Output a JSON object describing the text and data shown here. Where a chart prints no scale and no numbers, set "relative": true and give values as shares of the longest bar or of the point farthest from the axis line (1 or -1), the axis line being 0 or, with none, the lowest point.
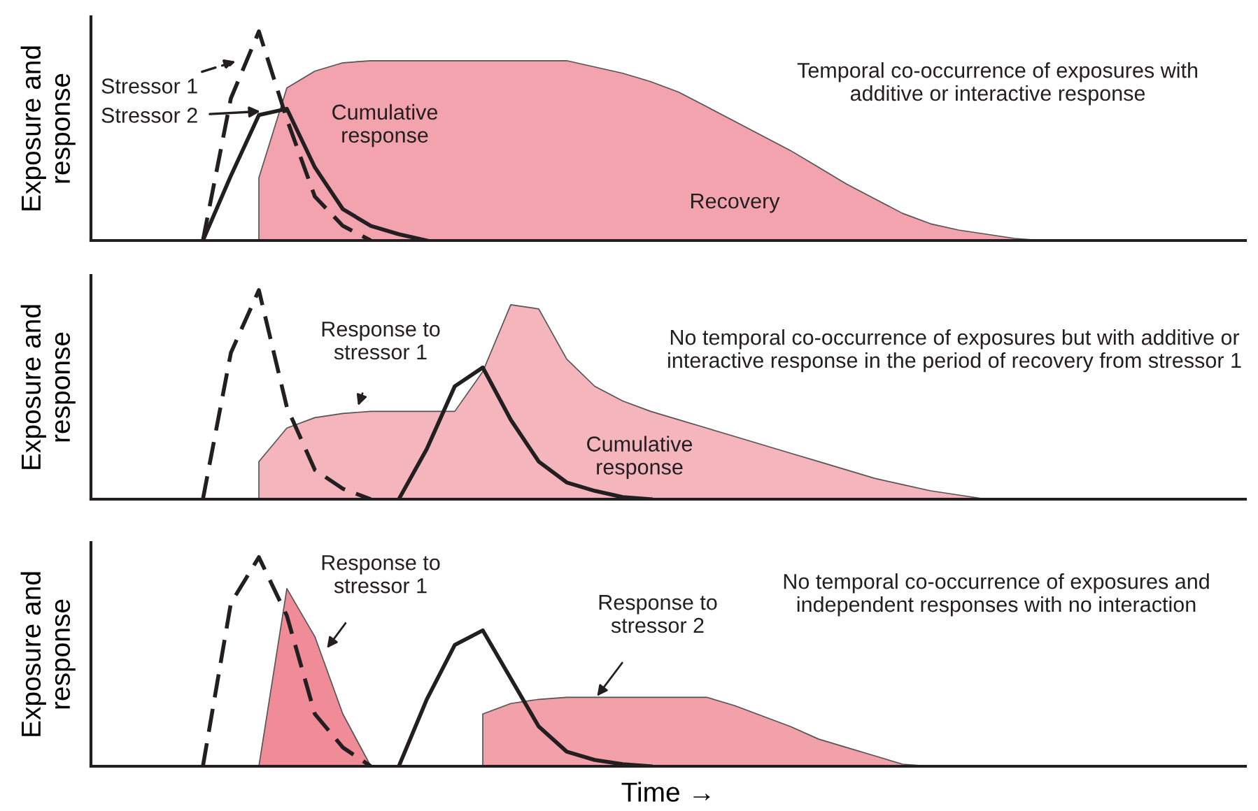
{
  "chart_data": [
    {
      "type": "line",
      "relative": true,
      "ylabel": "Exposure and\nresponse",
      "legend": "top left",
      "categories": [
        null,
        null,
        null,
        null,
        null,
        null,
        null,
        null,
        null,
        null,
        null,
        null,
        null,
        null,
        null,
        null,
        null,
        null,
        null,
        null,
        null,
        null,
        null,
        null,
        null,
        null,
        null,
        null,
        null,
        null,
        null,
        null,
        null,
        null,
        null,
        null,
        null,
        null,
        null,
        null,
        null,
        null
      ],
      "series": [
        {
          "type": "area",
          "color": "#f3a3ad",
          "values": [
            null,
            null,
            null,
            null,
            null,
            null,
            0.3,
            0.73,
            0.81,
            0.85,
            0.86,
            0.86,
            0.86,
            0.86,
            0.86,
            0.86,
            0.86,
            0.86,
            0.83,
            0.8,
            0.76,
            0.71,
            0.64,
            0.57,
            0.5,
            0.43,
            0.35,
            0.27,
            0.2,
            0.13,
            0.08,
            0.05,
            0.03,
            0.01,
            0,
            null,
            null,
            null,
            null,
            null,
            null,
            null
          ]
        },
        {
          "name": "Stressor 1",
          "color": "#231f20",
          "line_style": "dashed",
          "values": [
            null,
            null,
            null,
            null,
            0,
            0.68,
            1,
            0.58,
            0.21,
            0.07,
            0,
            null,
            null,
            null,
            null,
            null,
            null,
            null,
            null,
            null,
            null,
            null,
            null,
            null,
            null,
            null,
            null,
            null,
            null,
            null,
            null,
            null,
            null,
            null,
            null,
            null,
            null,
            null,
            null,
            null,
            null,
            null
          ]
        },
        {
          "name": "Stressor 2",
          "color": "#231f20",
          "line_style": "solid",
          "values": [
            null,
            null,
            null,
            null,
            0,
            0.31,
            0.6,
            0.63,
            0.35,
            0.15,
            0.07,
            0.03,
            0,
            null,
            null,
            null,
            null,
            null,
            null,
            null,
            null,
            null,
            null,
            null,
            null,
            null,
            null,
            null,
            null,
            null,
            null,
            null,
            null,
            null,
            null,
            null,
            null,
            null,
            null,
            null,
            null,
            null
          ]
        }
      ],
      "annotations": [
        "Cumulative\nresponse",
        "Recovery",
        "Temporal co-occurrence of exposures with\nadditive or interactive response"
      ]
    },
    {
      "type": "line",
      "relative": true,
      "ylabel": "Exposure and\nresponse",
      "legend": false,
      "categories": [
        null,
        null,
        null,
        null,
        null,
        null,
        null,
        null,
        null,
        null,
        null,
        null,
        null,
        null,
        null,
        null,
        null,
        null,
        null,
        null,
        null,
        null,
        null,
        null,
        null,
        null,
        null,
        null,
        null,
        null,
        null,
        null,
        null,
        null,
        null,
        null,
        null,
        null,
        null,
        null,
        null,
        null
      ],
      "series": [
        {
          "type": "area",
          "color": "#f5b5bd",
          "values": [
            null,
            null,
            null,
            null,
            null,
            null,
            0.18,
            0.34,
            0.39,
            0.41,
            0.42,
            0.42,
            0.42,
            0.42,
            0.61,
            0.93,
            0.91,
            0.67,
            0.54,
            0.47,
            0.42,
            0.38,
            0.34,
            0.3,
            0.26,
            0.22,
            0.18,
            0.14,
            0.1,
            0.07,
            0.04,
            0.02,
            0,
            null,
            null,
            null,
            null,
            null,
            null,
            null,
            null,
            null
          ]
        },
        {
          "color": "#231f20",
          "line_style": "dashed",
          "values": [
            null,
            null,
            null,
            null,
            0,
            0.7,
            1,
            0.44,
            0.14,
            0.05,
            0,
            null,
            null,
            null,
            null,
            null,
            null,
            null,
            null,
            null,
            null,
            null,
            null,
            null,
            null,
            null,
            null,
            null,
            null,
            null,
            null,
            null,
            null,
            null,
            null,
            null,
            null,
            null,
            null,
            null,
            null,
            null
          ]
        },
        {
          "color": "#231f20",
          "line_style": "solid",
          "values": [
            null,
            null,
            null,
            null,
            null,
            null,
            null,
            null,
            null,
            null,
            null,
            0,
            0.24,
            0.54,
            0.63,
            0.38,
            0.18,
            0.08,
            0.04,
            0.01,
            0,
            null,
            null,
            null,
            null,
            null,
            null,
            null,
            null,
            null,
            null,
            null,
            null,
            null,
            null,
            null,
            null,
            null,
            null,
            null,
            null,
            null
          ]
        }
      ],
      "annotations": [
        "Response to\nstressor 1",
        "Cumulative\nresponse",
        "No temporal co-occurrence of exposures but with additive or\ninteractive response in the period of recovery from stressor 1"
      ]
    },
    {
      "type": "line",
      "relative": true,
      "ylabel": "Exposure and\nresponse",
      "xlabel": "Time →",
      "legend": false,
      "categories": [
        null,
        null,
        null,
        null,
        null,
        null,
        null,
        null,
        null,
        null,
        null,
        null,
        null,
        null,
        null,
        null,
        null,
        null,
        null,
        null,
        null,
        null,
        null,
        null,
        null,
        null,
        null,
        null,
        null,
        null,
        null,
        null,
        null,
        null,
        null,
        null,
        null,
        null,
        null,
        null,
        null,
        null
      ],
      "series": [
        {
          "type": "area",
          "color": "#ef8c98",
          "values": [
            null,
            null,
            null,
            null,
            null,
            null,
            0,
            0.85,
            0.62,
            0.25,
            0,
            null,
            null,
            null,
            null,
            null,
            null,
            null,
            null,
            null,
            null,
            null,
            null,
            null,
            null,
            null,
            null,
            null,
            null,
            null,
            null,
            null,
            null,
            null,
            null,
            null,
            null,
            null,
            null,
            null,
            null,
            null
          ]
        },
        {
          "type": "area",
          "color": "#f2a0aa",
          "values": [
            null,
            null,
            null,
            null,
            null,
            null,
            null,
            null,
            null,
            null,
            null,
            null,
            null,
            null,
            0.25,
            0.3,
            0.32,
            0.33,
            0.33,
            0.33,
            0.33,
            0.33,
            0.33,
            0.29,
            0.24,
            0.19,
            0.13,
            0.09,
            0.05,
            0.01,
            0,
            null,
            null,
            null,
            null,
            null,
            null,
            null,
            null,
            null,
            null,
            null
          ]
        },
        {
          "color": "#231f20",
          "line_style": "dashed",
          "values": [
            null,
            null,
            null,
            null,
            0,
            0.78,
            1,
            0.72,
            0.25,
            0.09,
            0,
            null,
            null,
            null,
            null,
            null,
            null,
            null,
            null,
            null,
            null,
            null,
            null,
            null,
            null,
            null,
            null,
            null,
            null,
            null,
            null,
            null,
            null,
            null,
            null,
            null,
            null,
            null,
            null,
            null,
            null,
            null
          ]
        },
        {
          "color": "#231f20",
          "line_style": "solid",
          "values": [
            null,
            null,
            null,
            null,
            null,
            null,
            null,
            null,
            null,
            null,
            null,
            0,
            0.32,
            0.58,
            0.65,
            0.42,
            0.19,
            0.07,
            0.03,
            0.01,
            0,
            null,
            null,
            null,
            null,
            null,
            null,
            null,
            null,
            null,
            null,
            null,
            null,
            null,
            null,
            null,
            null,
            null,
            null,
            null,
            null,
            null
          ]
        }
      ],
      "annotations": [
        "Response to\nstressor 1",
        "Response to\nstressor 2",
        "No temporal co-occurrence of exposures and\nindependent responses with no interaction"
      ]
    }
  ]
}
